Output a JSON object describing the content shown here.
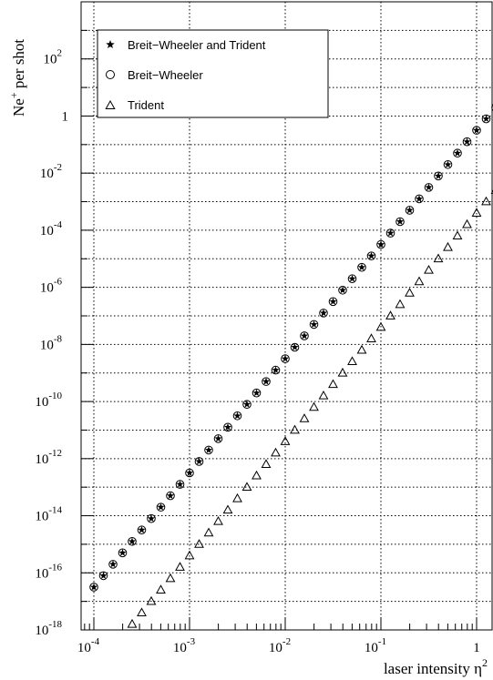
{
  "chart_data": {
    "type": "scatter",
    "xlabel_text": "laser intensity η",
    "xlabel_sup": "2",
    "ylabel_base": "Ne",
    "ylabel_sup": "+",
    "ylabel_rest": " per shot",
    "x_scale": "log",
    "y_scale": "log",
    "xlim": [
      0.0001,
      1.0
    ],
    "ylim": [
      1e-18,
      10000.0
    ],
    "grid": true,
    "legend_position": "top-left",
    "x_tick_labels": [
      {
        "base": "10",
        "exp": "-4"
      },
      {
        "base": "10",
        "exp": "-3"
      },
      {
        "base": "10",
        "exp": "-2"
      },
      {
        "base": "10",
        "exp": "-1"
      },
      {
        "base": "1",
        "exp": ""
      }
    ],
    "y_tick_labels": [
      {
        "base": "10",
        "exp": "-18"
      },
      {
        "base": "10",
        "exp": "-16"
      },
      {
        "base": "10",
        "exp": "-14"
      },
      {
        "base": "10",
        "exp": "-12"
      },
      {
        "base": "10",
        "exp": "-10"
      },
      {
        "base": "10",
        "exp": "-8"
      },
      {
        "base": "10",
        "exp": "-6"
      },
      {
        "base": "10",
        "exp": "-4"
      },
      {
        "base": "10",
        "exp": "-2"
      },
      {
        "base": "1",
        "exp": ""
      },
      {
        "base": "10",
        "exp": "2"
      }
    ],
    "series": [
      {
        "name": "Breit−Wheeler and Trident",
        "marker": "star",
        "x_log10_start": -4.0,
        "x_log10_step": 0.1,
        "y_log10": [
          -16.5,
          -16.1,
          -15.7,
          -15.3,
          -14.9,
          -14.5,
          -14.1,
          -13.7,
          -13.3,
          -12.9,
          -12.5,
          -12.1,
          -11.7,
          -11.3,
          -10.9,
          -10.5,
          -10.1,
          -9.7,
          -9.3,
          -8.9,
          -8.5,
          -8.1,
          -7.7,
          -7.3,
          -6.9,
          -6.5,
          -6.1,
          -5.7,
          -5.3,
          -4.9,
          -4.5,
          -4.1,
          -3.7,
          -3.3,
          -2.9,
          -2.5,
          -2.1,
          -1.7,
          -1.3,
          -0.9,
          -0.5,
          -0.1,
          0.3,
          0.7,
          1.1,
          1.5,
          1.9,
          2.3,
          2.7,
          3.1,
          3.5
        ]
      },
      {
        "name": "Breit−Wheeler",
        "marker": "circle",
        "x_log10_start": -4.0,
        "x_log10_step": 0.1,
        "y_log10": [
          -16.5,
          -16.1,
          -15.7,
          -15.3,
          -14.9,
          -14.5,
          -14.1,
          -13.7,
          -13.3,
          -12.9,
          -12.5,
          -12.1,
          -11.7,
          -11.3,
          -10.9,
          -10.5,
          -10.1,
          -9.7,
          -9.3,
          -8.9,
          -8.5,
          -8.1,
          -7.7,
          -7.3,
          -6.9,
          -6.5,
          -6.1,
          -5.7,
          -5.3,
          -4.9,
          -4.5,
          -4.1,
          -3.7,
          -3.3,
          -2.9,
          -2.5,
          -2.1,
          -1.7,
          -1.3,
          -0.9,
          -0.5,
          -0.1,
          0.3,
          0.7,
          1.1,
          1.5,
          1.9,
          2.3,
          2.7,
          3.1,
          3.5
        ]
      },
      {
        "name": "Trident",
        "marker": "triangle",
        "x_log10_start": -3.6,
        "x_log10_step": 0.1,
        "y_log10": [
          -17.8,
          -17.4,
          -17.0,
          -16.6,
          -16.2,
          -15.8,
          -15.4,
          -15.0,
          -14.6,
          -14.2,
          -13.8,
          -13.4,
          -13.0,
          -12.6,
          -12.2,
          -11.8,
          -11.4,
          -11.0,
          -10.6,
          -10.2,
          -9.8,
          -9.4,
          -9.0,
          -8.6,
          -8.2,
          -7.8,
          -7.4,
          -7.0,
          -6.6,
          -6.2,
          -5.8,
          -5.4,
          -5.0,
          -4.6,
          -4.2,
          -3.8,
          -3.4,
          -3.0,
          -2.6,
          -2.2,
          -1.8,
          -1.4,
          -1.0,
          -0.6,
          -0.2,
          0.2,
          0.6
        ]
      }
    ]
  }
}
